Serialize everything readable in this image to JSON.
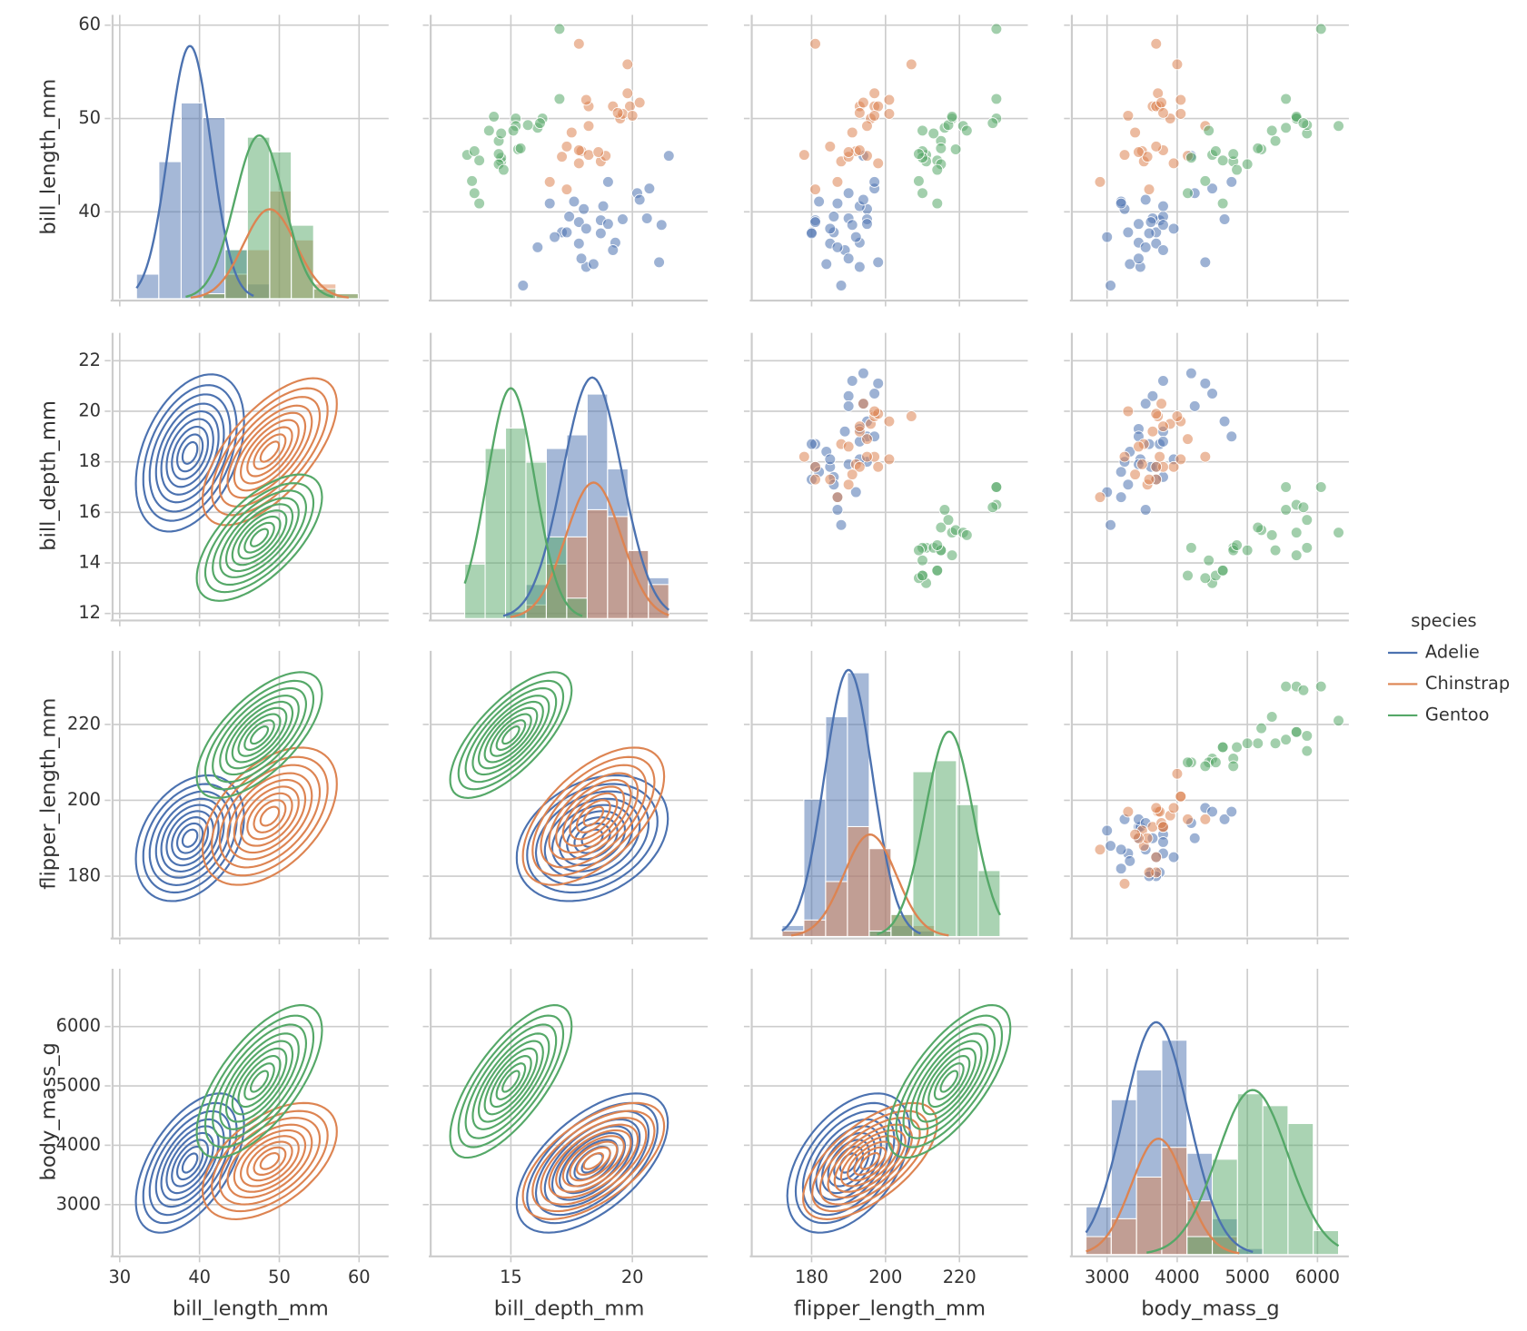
{
  "chart_data": {
    "type": "pairplot",
    "hue_title": "species",
    "grid": true,
    "legend": "right",
    "variables": [
      {
        "name": "bill_length_mm",
        "xlim": [
          29.1,
          63.7
        ],
        "xticks": [
          30,
          40,
          50,
          60
        ],
        "ylim": [
          30.7,
          61.1
        ],
        "yticks": [
          40,
          50,
          60
        ],
        "bins": [
          32.1,
          34.9,
          37.7,
          40.4,
          43.2,
          46.0,
          48.8,
          51.5,
          54.3,
          57.1,
          59.9
        ],
        "count_lim": [
          0,
          58
        ]
      },
      {
        "name": "bill_depth_mm",
        "xlim": [
          11.7,
          23.1
        ],
        "xticks": [
          15,
          20
        ],
        "ylim": [
          11.8,
          23.1
        ],
        "yticks": [
          12,
          14,
          16,
          18,
          20,
          22
        ],
        "bins": [
          13.1,
          13.94,
          14.78,
          15.62,
          16.46,
          17.3,
          18.14,
          18.98,
          19.82,
          20.66,
          21.5
        ],
        "count_lim": [
          0,
          42
        ]
      },
      {
        "name": "flipper_length_mm",
        "xlim": [
          163.8,
          238.5
        ],
        "xticks": [
          180,
          200,
          220
        ],
        "ylim": [
          164.1,
          239.4
        ],
        "yticks": [
          180,
          200,
          220
        ],
        "bins": [
          172,
          177.9,
          183.8,
          189.7,
          195.6,
          201.5,
          207.4,
          213.3,
          219.2,
          225.1,
          231
        ],
        "count_lim": [
          0,
          52
        ]
      },
      {
        "name": "body_mass_g",
        "xlim": [
          2498,
          6447
        ],
        "xticks": [
          3000,
          4000,
          5000,
          6000
        ],
        "ylim": [
          2160,
          6973
        ],
        "yticks": [
          3000,
          4000,
          5000,
          6000
        ],
        "bins": [
          2700,
          3060,
          3420,
          3780,
          4140,
          4500,
          4860,
          5220,
          5580,
          5940,
          6300
        ],
        "count_lim": [
          0,
          48
        ]
      }
    ],
    "series": [
      {
        "name": "Adelie",
        "color": "#4c72b0",
        "points": [
          [
            39.1,
            18.7,
            181,
            3750
          ],
          [
            39.5,
            17.4,
            186,
            3800
          ],
          [
            40.3,
            18.0,
            195,
            3250
          ],
          [
            36.7,
            19.3,
            193,
            3450
          ],
          [
            39.3,
            20.6,
            190,
            3650
          ],
          [
            38.9,
            17.8,
            181,
            3625
          ],
          [
            39.2,
            19.6,
            195,
            4675
          ],
          [
            34.1,
            18.1,
            193,
            3475
          ],
          [
            42.0,
            20.2,
            190,
            4250
          ],
          [
            37.8,
            17.1,
            186,
            3300
          ],
          [
            37.8,
            17.3,
            180,
            3700
          ],
          [
            41.1,
            17.6,
            182,
            3200
          ],
          [
            38.6,
            21.2,
            191,
            3800
          ],
          [
            34.6,
            21.1,
            198,
            4400
          ],
          [
            36.6,
            17.8,
            185,
            3700
          ],
          [
            38.7,
            19.0,
            195,
            3450
          ],
          [
            42.5,
            20.7,
            197,
            4500
          ],
          [
            34.4,
            18.4,
            184,
            3325
          ],
          [
            46.0,
            21.5,
            194,
            4200
          ],
          [
            37.7,
            18.7,
            180,
            3600
          ],
          [
            35.9,
            19.2,
            189,
            3800
          ],
          [
            38.2,
            18.1,
            185,
            3950
          ],
          [
            32.1,
            15.5,
            188,
            3050
          ],
          [
            40.6,
            18.8,
            193,
            3800
          ],
          [
            36.2,
            16.1,
            187,
            3550
          ],
          [
            41.3,
            20.3,
            194,
            3550
          ],
          [
            43.2,
            19.0,
            197,
            4775
          ],
          [
            35.0,
            17.9,
            190,
            3450
          ],
          [
            37.3,
            16.8,
            192,
            3000
          ],
          [
            40.9,
            16.6,
            187,
            3200
          ]
        ],
        "counts": [
          [
            5,
            28,
            40,
            37,
            10,
            3,
            0,
            0,
            0,
            0
          ],
          [
            0,
            0,
            1,
            5,
            25,
            27,
            33,
            22,
            10,
            6
          ],
          [
            2,
            25,
            40,
            48,
            16,
            2,
            1,
            0,
            0,
            0
          ],
          [
            8,
            26,
            31,
            36,
            17,
            6,
            1,
            0,
            0,
            0
          ]
        ],
        "mean": [
          38.8,
          18.35,
          190,
          3700
        ],
        "sd": [
          2.66,
          1.22,
          6.5,
          460
        ],
        "corr": [
          [
            1,
            0.39,
            0.33,
            0.55
          ],
          [
            0.39,
            1,
            0.31,
            0.58
          ],
          [
            0.33,
            0.31,
            1,
            0.47
          ],
          [
            0.55,
            0.58,
            0.47,
            1
          ]
        ]
      },
      {
        "name": "Chinstrap",
        "color": "#dd8452",
        "points": [
          [
            46.5,
            17.9,
            192,
            3500
          ],
          [
            50.0,
            19.5,
            196,
            3900
          ],
          [
            51.3,
            19.2,
            193,
            3650
          ],
          [
            45.4,
            18.7,
            188,
            3525
          ],
          [
            52.7,
            19.8,
            197,
            3725
          ],
          [
            45.2,
            17.8,
            198,
            3950
          ],
          [
            46.1,
            18.2,
            178,
            3250
          ],
          [
            51.3,
            18.2,
            197,
            3750
          ],
          [
            46.0,
            18.9,
            195,
            4150
          ],
          [
            51.3,
            19.9,
            198,
            3700
          ],
          [
            46.6,
            17.8,
            193,
            3800
          ],
          [
            51.7,
            20.3,
            194,
            3775
          ],
          [
            47.0,
            17.3,
            185,
            3700
          ],
          [
            52.0,
            18.1,
            201,
            4050
          ],
          [
            45.9,
            17.1,
            190,
            3575
          ],
          [
            50.5,
            19.6,
            201,
            4050
          ],
          [
            50.3,
            20.0,
            197,
            3300
          ],
          [
            58.0,
            17.8,
            181,
            3700
          ],
          [
            46.4,
            18.6,
            190,
            3450
          ],
          [
            49.2,
            18.2,
            195,
            4400
          ],
          [
            42.4,
            17.3,
            181,
            3600
          ],
          [
            48.5,
            17.5,
            191,
            3400
          ],
          [
            43.2,
            16.6,
            187,
            2900
          ],
          [
            50.6,
            19.4,
            193,
            3800
          ],
          [
            55.8,
            19.8,
            207,
            4000
          ]
        ],
        "counts": [
          [
            0,
            0,
            0,
            1,
            5,
            10,
            22,
            12,
            3,
            1
          ],
          [
            0,
            0,
            0,
            2,
            8,
            12,
            16,
            15,
            10,
            5
          ],
          [
            1,
            3,
            10,
            20,
            16,
            4,
            2,
            0,
            0,
            0
          ],
          [
            3,
            6,
            13,
            18,
            9,
            3,
            0,
            0,
            0,
            0
          ]
        ],
        "mean": [
          48.8,
          18.4,
          195.8,
          3733
        ],
        "sd": [
          3.3,
          1.14,
          7.1,
          384
        ],
        "corr": [
          [
            1,
            0.65,
            0.47,
            0.51
          ],
          [
            0.65,
            1,
            0.58,
            0.6
          ],
          [
            0.47,
            0.58,
            1,
            0.64
          ],
          [
            0.51,
            0.6,
            0.64,
            1
          ]
        ]
      },
      {
        "name": "Gentoo",
        "color": "#55a868",
        "points": [
          [
            46.1,
            13.2,
            211,
            4500
          ],
          [
            50.0,
            16.3,
            230,
            5700
          ],
          [
            48.7,
            14.1,
            210,
            4450
          ],
          [
            50.0,
            15.2,
            218,
            5700
          ],
          [
            47.6,
            14.5,
            215,
            5400
          ],
          [
            46.5,
            13.5,
            210,
            4550
          ],
          [
            45.4,
            14.6,
            211,
            4800
          ],
          [
            46.7,
            15.3,
            219,
            5200
          ],
          [
            43.3,
            13.4,
            209,
            4400
          ],
          [
            46.8,
            15.4,
            215,
            5150
          ],
          [
            40.9,
            13.7,
            214,
            4650
          ],
          [
            49.0,
            16.1,
            216,
            5550
          ],
          [
            45.5,
            13.7,
            214,
            4650
          ],
          [
            48.4,
            14.6,
            213,
            5850
          ],
          [
            45.8,
            14.6,
            210,
            4200
          ],
          [
            49.3,
            15.7,
            217,
            5850
          ],
          [
            42.0,
            13.5,
            210,
            4150
          ],
          [
            49.2,
            15.2,
            221,
            6300
          ],
          [
            46.2,
            14.5,
            209,
            4800
          ],
          [
            48.7,
            15.1,
            222,
            5350
          ],
          [
            50.2,
            14.3,
            218,
            5700
          ],
          [
            45.1,
            14.5,
            215,
            5000
          ],
          [
            59.6,
            17.0,
            230,
            6050
          ],
          [
            49.5,
            16.2,
            229,
            5800
          ],
          [
            44.5,
            14.7,
            214,
            4850
          ],
          [
            52.1,
            17.0,
            230,
            5550
          ]
        ],
        "counts": [
          [
            0,
            0,
            0,
            1,
            10,
            33,
            30,
            15,
            2,
            1
          ],
          [
            8,
            25,
            28,
            23,
            12,
            3,
            0,
            0,
            0,
            0
          ],
          [
            0,
            0,
            0,
            0,
            1,
            4,
            30,
            32,
            24,
            12
          ],
          [
            0,
            0,
            0,
            0,
            3,
            16,
            27,
            25,
            22,
            4
          ]
        ],
        "mean": [
          47.5,
          15.0,
          217.2,
          5076
        ],
        "sd": [
          3.08,
          0.98,
          6.5,
          504
        ],
        "corr": [
          [
            1,
            0.64,
            0.66,
            0.67
          ],
          [
            0.64,
            1,
            0.71,
            0.72
          ],
          [
            0.66,
            0.71,
            1,
            0.7
          ],
          [
            0.67,
            0.72,
            0.7,
            1
          ]
        ]
      }
    ]
  }
}
